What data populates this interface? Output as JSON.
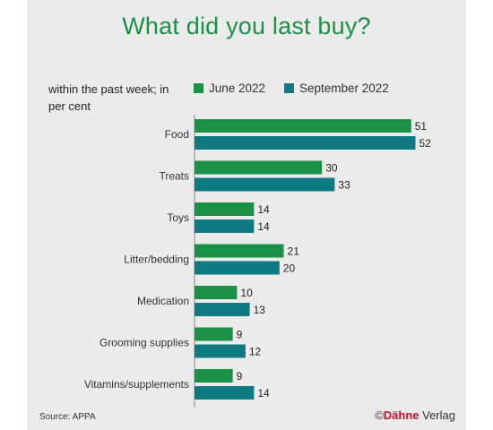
{
  "title": "What did you last buy?",
  "subtitle": "within the past week; in per cent",
  "source": "Source: APPA",
  "copyright": {
    "symbol": "©",
    "brand": "Dähne",
    "suffix": " Verlag"
  },
  "colors": {
    "june": "#1a9146",
    "september": "#0f7a82",
    "title": "#1a9146",
    "panel": "#ebebeb",
    "axis": "#888888"
  },
  "chart_data": {
    "type": "bar",
    "orientation": "horizontal",
    "title": "What did you last buy?",
    "subtitle": "within the past week; in per cent",
    "categories": [
      "Food",
      "Treats",
      "Toys",
      "Litter/bedding",
      "Medication",
      "Grooming supplies",
      "Vitamins/supplements"
    ],
    "series": [
      {
        "name": "June 2022",
        "values": [
          51,
          30,
          14,
          21,
          10,
          9,
          9
        ]
      },
      {
        "name": "September 2022",
        "values": [
          52,
          33,
          14,
          20,
          13,
          12,
          14
        ]
      }
    ],
    "xlim": [
      0,
      60
    ],
    "grid": false,
    "legend": "top-right",
    "data_labels": true
  }
}
